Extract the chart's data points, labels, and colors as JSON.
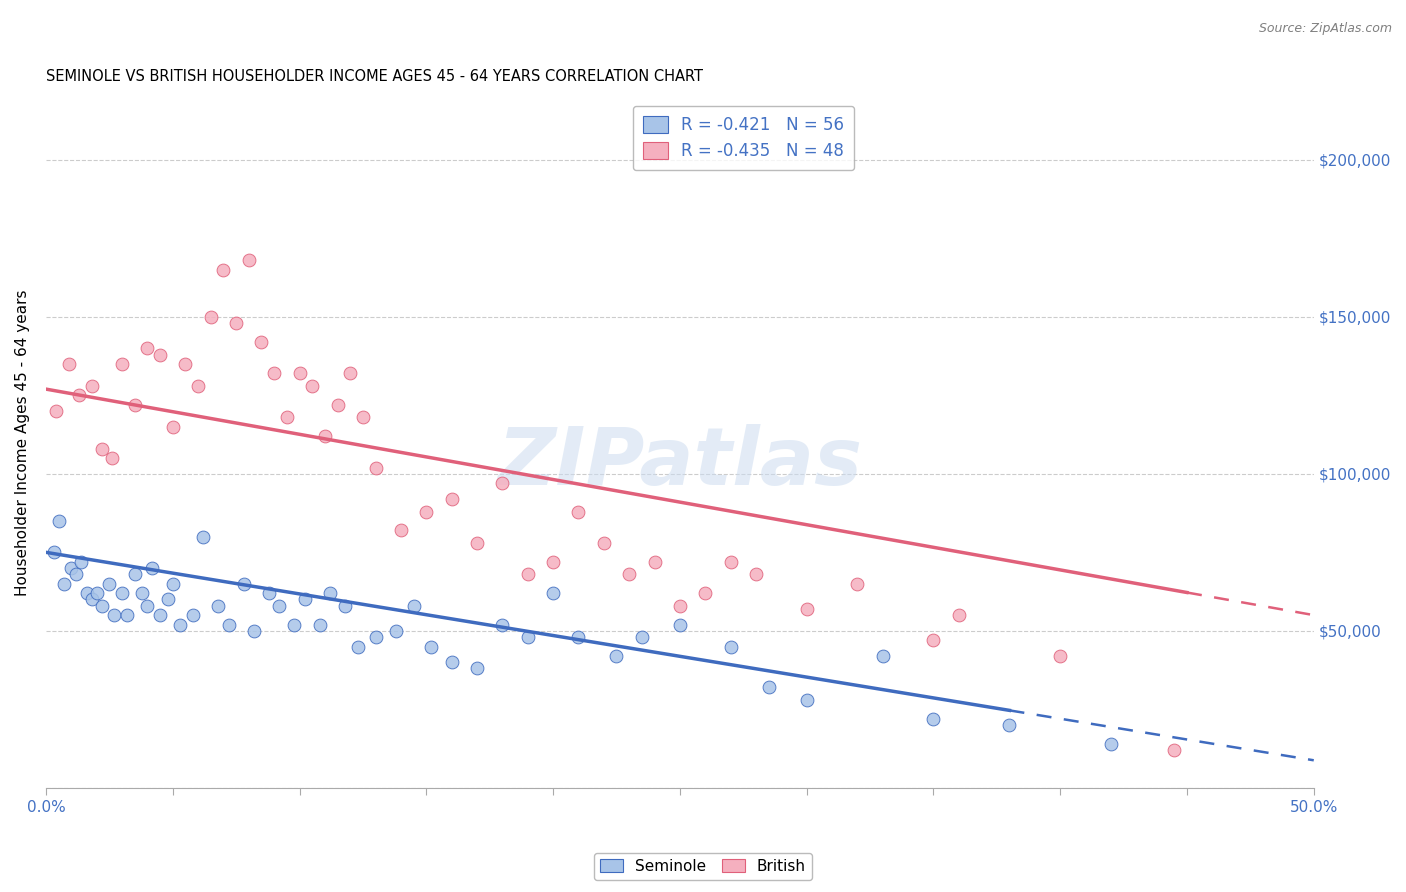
{
  "title": "SEMINOLE VS BRITISH HOUSEHOLDER INCOME AGES 45 - 64 YEARS CORRELATION CHART",
  "source": "Source: ZipAtlas.com",
  "ylabel": "Householder Income Ages 45 - 64 years",
  "seminole_R": -0.421,
  "seminole_N": 56,
  "british_R": -0.435,
  "british_N": 48,
  "seminole_color": "#a8c4e8",
  "british_color": "#f5b0bf",
  "seminole_line_color": "#3f6bbf",
  "british_line_color": "#e0607a",
  "background_color": "#ffffff",
  "watermark": "ZIPatlas",
  "seminole_x": [
    0.3,
    0.5,
    0.7,
    1.0,
    1.2,
    1.4,
    1.6,
    1.8,
    2.0,
    2.2,
    2.5,
    2.7,
    3.0,
    3.2,
    3.5,
    3.8,
    4.0,
    4.2,
    4.5,
    4.8,
    5.0,
    5.3,
    5.8,
    6.2,
    6.8,
    7.2,
    7.8,
    8.2,
    8.8,
    9.2,
    9.8,
    10.2,
    10.8,
    11.2,
    11.8,
    12.3,
    13.0,
    13.8,
    14.5,
    15.2,
    16.0,
    17.0,
    18.0,
    19.0,
    20.0,
    21.0,
    22.5,
    23.5,
    25.0,
    27.0,
    28.5,
    30.0,
    33.0,
    35.0,
    38.0,
    42.0
  ],
  "seminole_y": [
    75000,
    85000,
    65000,
    70000,
    68000,
    72000,
    62000,
    60000,
    62000,
    58000,
    65000,
    55000,
    62000,
    55000,
    68000,
    62000,
    58000,
    70000,
    55000,
    60000,
    65000,
    52000,
    55000,
    80000,
    58000,
    52000,
    65000,
    50000,
    62000,
    58000,
    52000,
    60000,
    52000,
    62000,
    58000,
    45000,
    48000,
    50000,
    58000,
    45000,
    40000,
    38000,
    52000,
    48000,
    62000,
    48000,
    42000,
    48000,
    52000,
    45000,
    32000,
    28000,
    42000,
    22000,
    20000,
    14000
  ],
  "british_x": [
    0.4,
    0.9,
    1.3,
    1.8,
    2.2,
    2.6,
    3.0,
    3.5,
    4.0,
    4.5,
    5.0,
    5.5,
    6.0,
    6.5,
    7.0,
    7.5,
    8.0,
    8.5,
    9.0,
    9.5,
    10.0,
    10.5,
    11.0,
    11.5,
    12.0,
    12.5,
    13.0,
    14.0,
    15.0,
    16.0,
    17.0,
    18.0,
    19.0,
    20.0,
    21.0,
    22.0,
    23.0,
    24.0,
    25.0,
    26.0,
    27.0,
    28.0,
    30.0,
    32.0,
    35.0,
    36.0,
    40.0,
    44.5
  ],
  "british_y": [
    120000,
    135000,
    125000,
    128000,
    108000,
    105000,
    135000,
    122000,
    140000,
    138000,
    115000,
    135000,
    128000,
    150000,
    165000,
    148000,
    168000,
    142000,
    132000,
    118000,
    132000,
    128000,
    112000,
    122000,
    132000,
    118000,
    102000,
    82000,
    88000,
    92000,
    78000,
    97000,
    68000,
    72000,
    88000,
    78000,
    68000,
    72000,
    58000,
    62000,
    72000,
    68000,
    57000,
    65000,
    47000,
    55000,
    42000,
    12000
  ],
  "sem_line_x0": 0,
  "sem_line_y0": 75000,
  "sem_line_x1": 40,
  "sem_line_y1": 22000,
  "sem_solid_end": 38,
  "brit_line_x0": 0,
  "brit_line_y0": 127000,
  "brit_line_x1": 50,
  "brit_line_y1": 55000,
  "brit_solid_end": 45,
  "xmin": 0,
  "xmax": 50,
  "ymin": 0,
  "ymax": 220000,
  "yticks": [
    0,
    50000,
    100000,
    150000,
    200000
  ],
  "ytick_labels": [
    "",
    "$50,000",
    "$100,000",
    "$150,000",
    "$200,000"
  ],
  "xticks": [
    0,
    5,
    10,
    15,
    20,
    25,
    30,
    35,
    40,
    45,
    50
  ]
}
